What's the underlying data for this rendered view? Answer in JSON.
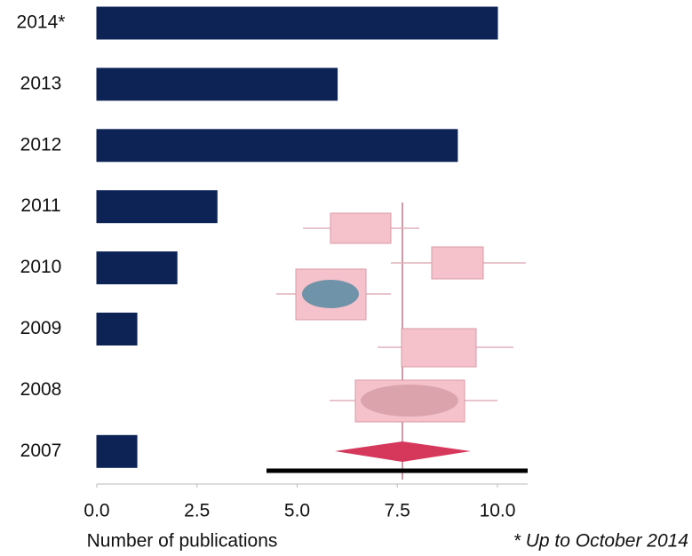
{
  "chart_data": {
    "type": "barh",
    "categories": [
      "2014*",
      "2013",
      "2012",
      "2011",
      "2010",
      "2009",
      "2008",
      "2007"
    ],
    "values": [
      10,
      6,
      9,
      3,
      2,
      1,
      0,
      1
    ],
    "color": "#0d2356",
    "xlabel": "Number of publications",
    "annotation": "* Up to October 2014",
    "xlim": [
      0,
      10
    ],
    "xticks": [
      {
        "value": 0,
        "label": "0.0"
      },
      {
        "value": 2.5,
        "label": "2.5"
      },
      {
        "value": 5,
        "label": "5.0"
      },
      {
        "value": 7.5,
        "label": "7.5"
      },
      {
        "value": 10,
        "label": "10.0"
      }
    ]
  }
}
